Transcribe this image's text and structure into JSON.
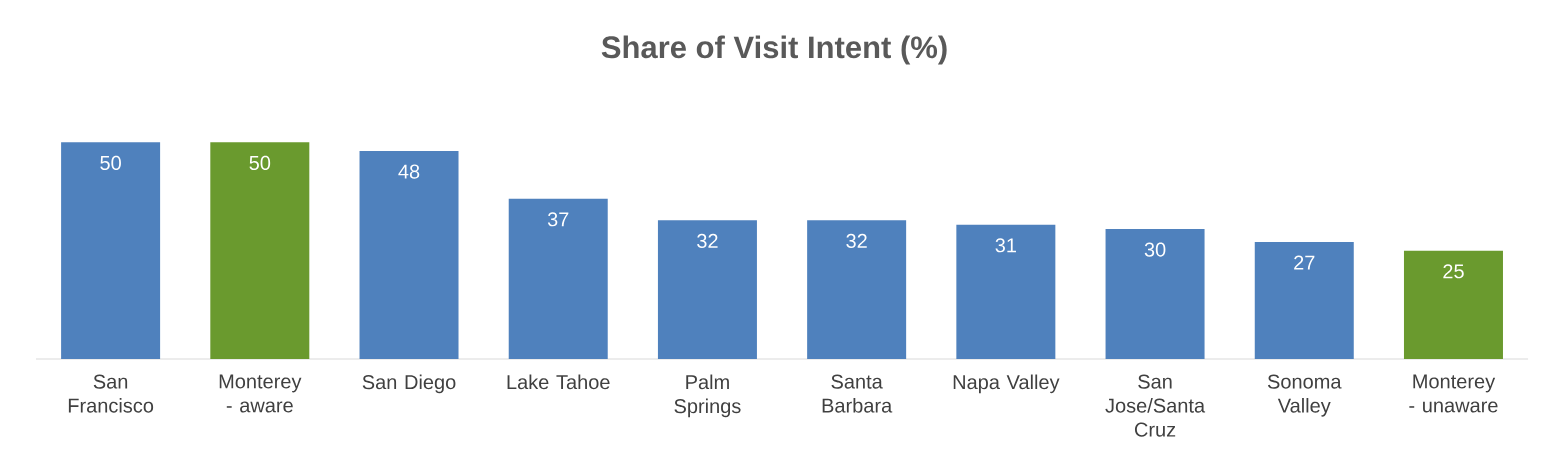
{
  "chart_data": {
    "type": "bar",
    "title": "Share of Visit Intent (%)",
    "categories": [
      "San Francisco",
      "Monterey - aware",
      "San Diego",
      "Lake Tahoe",
      "Palm Springs",
      "Santa Barbara",
      "Napa Valley",
      "San Jose/Santa Cruz",
      "Sonoma Valley",
      "Monterey - unaware"
    ],
    "values": [
      50,
      50,
      48,
      37,
      32,
      32,
      31,
      30,
      27,
      25
    ],
    "colors": [
      "#4f81bd",
      "#6a9a2e",
      "#4f81bd",
      "#4f81bd",
      "#4f81bd",
      "#4f81bd",
      "#4f81bd",
      "#4f81bd",
      "#4f81bd",
      "#6a9a2e"
    ],
    "data_labels": true
  }
}
